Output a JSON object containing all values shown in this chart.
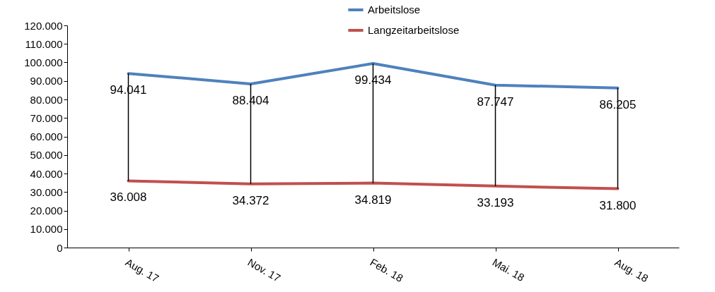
{
  "chart_data": {
    "type": "line",
    "categories": [
      "Aug. 17",
      "Nov. 17",
      "Feb. 18",
      "Mai. 18",
      "Aug. 18"
    ],
    "series": [
      {
        "name": "Arbeitslose",
        "color": "#4f81bd",
        "values": [
          94041,
          88404,
          99434,
          87747,
          86205
        ],
        "value_labels": [
          "94.041",
          "88.404",
          "99.434",
          "87.747",
          "86.205"
        ]
      },
      {
        "name": "Langzeitarbeitslose",
        "color": "#c0504d",
        "values": [
          36008,
          34372,
          34819,
          33193,
          31800
        ],
        "value_labels": [
          "36.008",
          "34.372",
          "34.819",
          "33.193",
          "31.800"
        ]
      }
    ],
    "ylim": [
      0,
      120000
    ],
    "yticks": [
      0,
      {
        "value": 10000,
        "label": "10.000"
      },
      {
        "value": 20000,
        "label": "20.000"
      },
      {
        "value": 30000,
        "label": "30.000"
      },
      {
        "value": 40000,
        "label": "40.000"
      },
      {
        "value": 50000,
        "label": "50.000"
      },
      {
        "value": 60000,
        "label": "60.000"
      },
      {
        "value": 70000,
        "label": "70.000"
      },
      {
        "value": 80000,
        "label": "80.000"
      },
      {
        "value": 90000,
        "label": "90.000"
      },
      {
        "value": 100000,
        "label": "100.000"
      },
      {
        "value": 110000,
        "label": "110.000"
      },
      {
        "value": 120000,
        "label": "120.000"
      }
    ],
    "grid": false,
    "legend": "top",
    "marker": "none",
    "line_style": "solid"
  }
}
